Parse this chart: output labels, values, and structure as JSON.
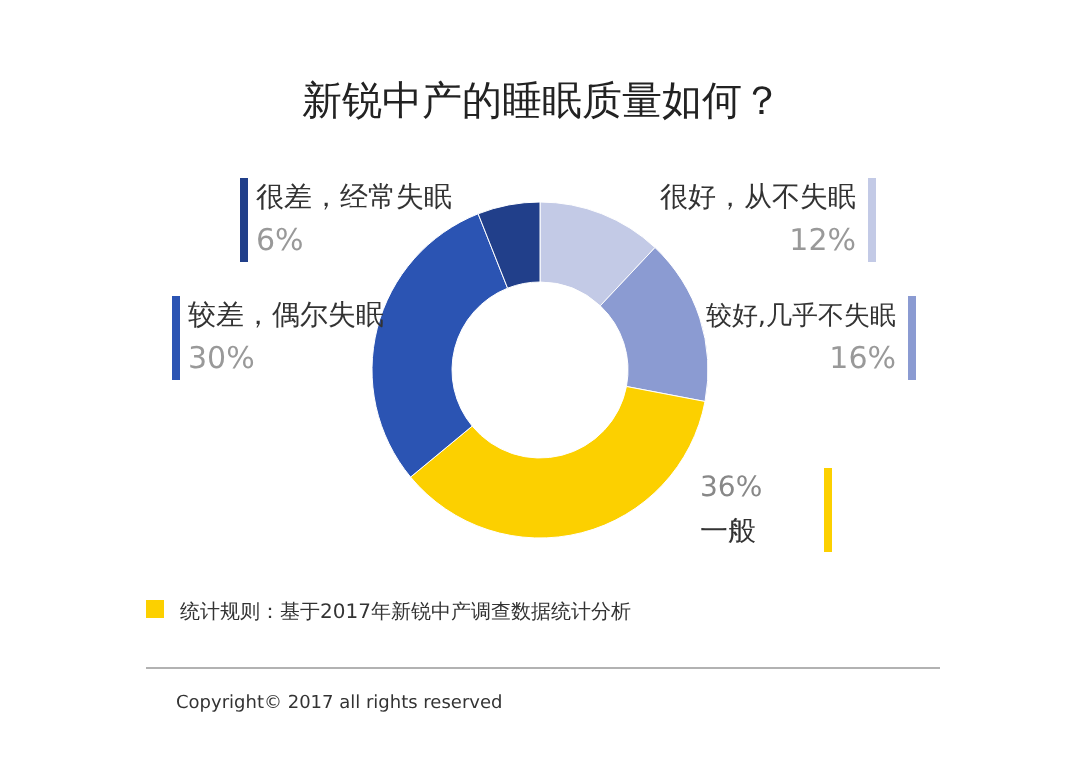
{
  "chart_data": {
    "type": "donut",
    "title": "新锐中产的睡眠质量如何？",
    "categories": [
      "很好，从不失眠",
      "较好,几乎不失眠",
      "一般",
      "较差，偶尔失眠",
      "很差，经常失眠"
    ],
    "values": [
      12,
      16,
      36,
      30,
      6
    ],
    "colors": [
      "#c3cae6",
      "#8b9bd2",
      "#fcd000",
      "#2b54b3",
      "#213f8a"
    ],
    "value_labels": [
      "12%",
      "16%",
      "36%",
      "30%",
      "6%"
    ],
    "annotations": [
      "统计规则：基于2017年新锐中产调查数据统计分析",
      "Copyright© 2017 all rights reserved"
    ]
  }
}
